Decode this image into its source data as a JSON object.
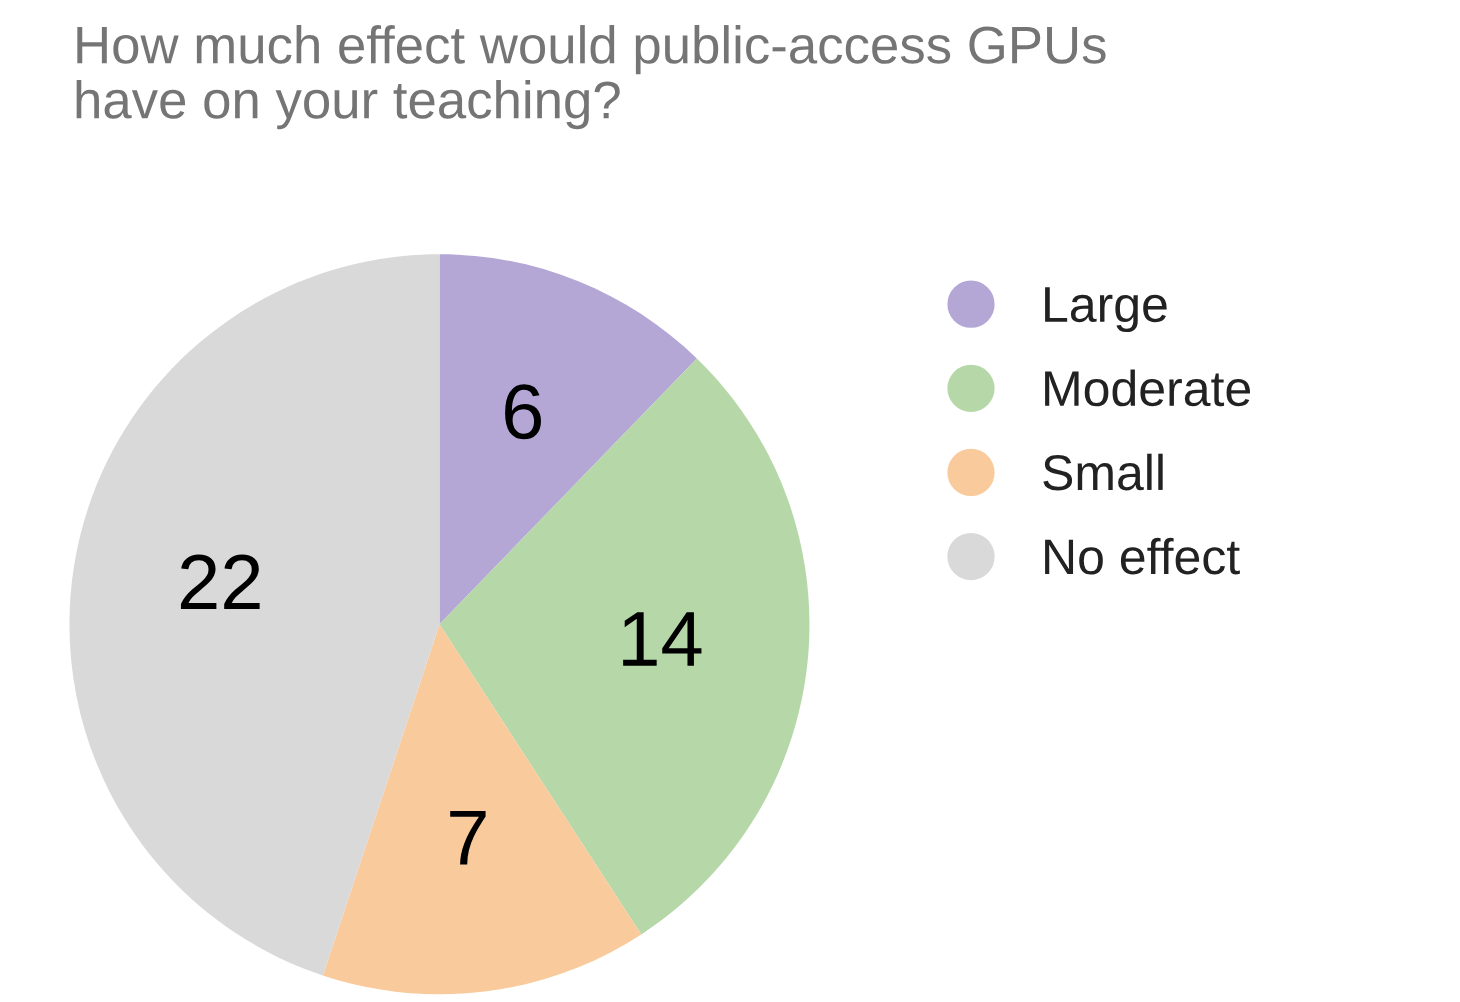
{
  "chart_data": {
    "type": "pie",
    "title": "How much effect would public-access GPUs\nhave on your teaching?",
    "categories": [
      "Large",
      "Moderate",
      "Small",
      "No effect"
    ],
    "values": [
      6,
      14,
      7,
      22
    ],
    "colors": [
      "#b4a7d6",
      "#b6d7a8",
      "#f9cb9c",
      "#d9d9d9"
    ],
    "data_labels": true,
    "legend": "right"
  }
}
